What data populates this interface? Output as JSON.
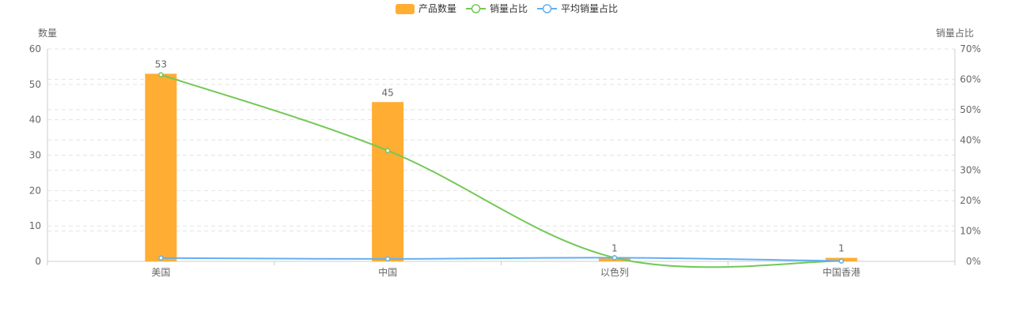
{
  "chart_data": {
    "type": "bar",
    "categories": [
      "美国",
      "中国",
      "以色列",
      "中国香港"
    ],
    "series": [
      {
        "name": "产品数量",
        "type": "bar",
        "axis": "left",
        "values": [
          53,
          45,
          1,
          1
        ],
        "data_labels": [
          "53",
          "45",
          "1",
          "1"
        ]
      },
      {
        "name": "销量占比",
        "type": "line",
        "axis": "right",
        "values": [
          61.5,
          36.5,
          1.2,
          0.1
        ]
      },
      {
        "name": "平均销量占比",
        "type": "line",
        "axis": "right",
        "values": [
          1.1,
          0.8,
          1.2,
          0.1
        ]
      }
    ],
    "ylabel": "数量",
    "ylim": [
      0,
      60
    ],
    "yticks": [
      "0",
      "10",
      "20",
      "30",
      "40",
      "50",
      "60"
    ],
    "y2label": "销量占比",
    "y2lim": [
      0,
      70
    ],
    "y2ticks": [
      "0%",
      "10%",
      "20%",
      "30%",
      "40%",
      "50%",
      "60%",
      "70%"
    ],
    "legend_position": "top-center",
    "grid": "dashed horizontal",
    "colors": {
      "bar": "#ffad33",
      "sales_share": "#73c856",
      "avg_sales_share": "#63aff0",
      "axis": "#cccccc",
      "grid": "#e3e3e3",
      "text": "#666666"
    }
  }
}
